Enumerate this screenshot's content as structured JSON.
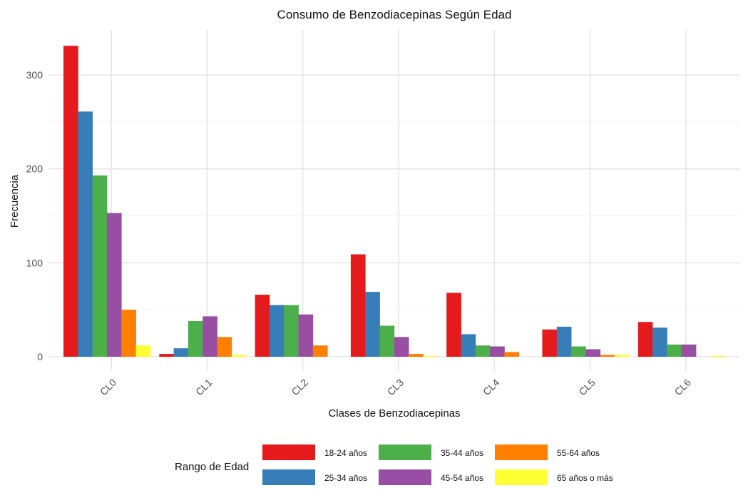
{
  "chart_data": {
    "type": "bar",
    "title": "Consumo de Benzodiacepinas Según Edad",
    "xlabel": "Clases de Benzodiacepinas",
    "ylabel": "Frecuencia",
    "categories": [
      "CL0",
      "CL1",
      "CL2",
      "CL3",
      "CL4",
      "CL5",
      "CL6"
    ],
    "ylim": [
      0,
      340
    ],
    "yticks": [
      0,
      100,
      200,
      300
    ],
    "grid": true,
    "legend": {
      "title": "Rango de Edad",
      "position": "bottom"
    },
    "series": [
      {
        "name": "18-24 años",
        "color": "#E41A1C",
        "values": [
          331,
          3,
          66,
          109,
          68,
          29,
          37
        ]
      },
      {
        "name": "25-34 años",
        "color": "#377EB8",
        "values": [
          261,
          9,
          55,
          69,
          24,
          32,
          31
        ]
      },
      {
        "name": "35-44 años",
        "color": "#4DAF4A",
        "values": [
          193,
          38,
          55,
          33,
          12,
          11,
          13
        ]
      },
      {
        "name": "45-54 años",
        "color": "#984EA3",
        "values": [
          153,
          43,
          45,
          21,
          11,
          8,
          13
        ]
      },
      {
        "name": "55-64 años",
        "color": "#FF7F00",
        "values": [
          50,
          21,
          12,
          3,
          5,
          2,
          0
        ]
      },
      {
        "name": "65 años o más",
        "color": "#FFFF33",
        "values": [
          12,
          2,
          0,
          1,
          0,
          2,
          1
        ]
      }
    ]
  }
}
